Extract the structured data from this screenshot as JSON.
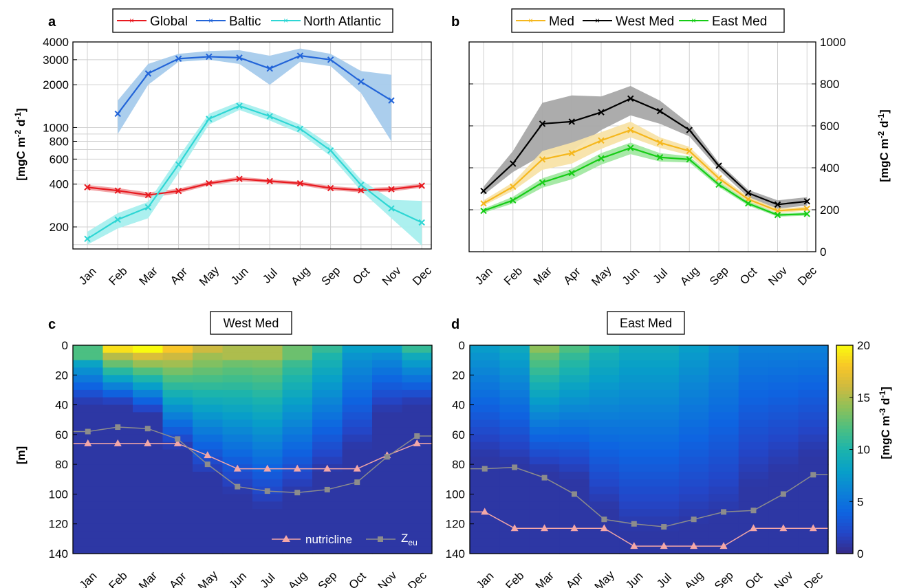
{
  "months": [
    "Jan",
    "Feb",
    "Mar",
    "Apr",
    "May",
    "Jun",
    "Jul",
    "Aug",
    "Sep",
    "Oct",
    "Nov",
    "Dec"
  ],
  "chart_data": [
    {
      "panel": "a",
      "type": "line",
      "y_scale": "log",
      "ylim": [
        140,
        4000
      ],
      "y_ticks": [
        200,
        400,
        600,
        800,
        1000,
        2000,
        3000,
        4000
      ],
      "ylabel": "[mgC m^-2 d^-1]",
      "ylabel_parts": {
        "pre": "[mgC m",
        "sup1": "-2",
        "mid": " d",
        "sup2": "-1",
        "post": "]"
      },
      "categories": [
        "Jan",
        "Feb",
        "Mar",
        "Apr",
        "May",
        "Jun",
        "Jul",
        "Aug",
        "Sep",
        "Oct",
        "Nov",
        "Dec"
      ],
      "grid": true,
      "legend_position": "top",
      "series": [
        {
          "name": "Global",
          "color": "#e8191f",
          "band_color": "#f0a1a3",
          "values": [
            380,
            360,
            335,
            358,
            405,
            435,
            420,
            405,
            375,
            362,
            368,
            390
          ],
          "lower": [
            365,
            345,
            320,
            345,
            392,
            420,
            408,
            392,
            362,
            350,
            355,
            378
          ],
          "upper": [
            395,
            375,
            350,
            372,
            418,
            450,
            432,
            418,
            388,
            375,
            382,
            402
          ]
        },
        {
          "name": "Baltic",
          "color": "#2264d8",
          "band_color": "#a6cbec",
          "values": [
            null,
            1250,
            2400,
            3050,
            3150,
            3100,
            2600,
            3200,
            3000,
            2100,
            1550,
            null
          ],
          "lower": [
            null,
            900,
            2000,
            2900,
            3000,
            2800,
            2000,
            2900,
            2700,
            1750,
            800,
            null
          ],
          "upper": [
            null,
            1550,
            2800,
            3300,
            3450,
            3500,
            3200,
            3600,
            3300,
            2500,
            2350,
            null
          ]
        },
        {
          "name": "North Atlantic",
          "color": "#2ed6d4",
          "band_color": "#a8efee",
          "values": [
            165,
            225,
            275,
            550,
            1150,
            1420,
            1200,
            980,
            690,
            395,
            270,
            215
          ],
          "lower": [
            150,
            195,
            230,
            480,
            1050,
            1330,
            1120,
            910,
            630,
            360,
            230,
            148
          ],
          "upper": [
            185,
            250,
            300,
            620,
            1250,
            1520,
            1290,
            1050,
            750,
            430,
            310,
            305
          ]
        }
      ]
    },
    {
      "panel": "b",
      "type": "line",
      "ylim": [
        0,
        1000
      ],
      "y_ticks": [
        0,
        200,
        400,
        600,
        800,
        1000
      ],
      "y_axis_side": "right",
      "ylabel": "[mgC m^-2 d^-1]",
      "ylabel_parts": {
        "pre": "[mgC m",
        "sup1": "-2",
        "mid": " d",
        "sup2": "-1",
        "post": "]"
      },
      "categories": [
        "Jan",
        "Feb",
        "Mar",
        "Apr",
        "May",
        "Jun",
        "Jul",
        "Aug",
        "Sep",
        "Oct",
        "Nov",
        "Dec"
      ],
      "grid": true,
      "legend_position": "top",
      "series": [
        {
          "name": "Med",
          "color": "#f5b71d",
          "band_color": "#f8e3a8",
          "values": [
            230,
            310,
            440,
            470,
            530,
            580,
            520,
            480,
            350,
            250,
            195,
            205
          ],
          "lower": [
            220,
            290,
            390,
            420,
            490,
            545,
            495,
            460,
            335,
            238,
            185,
            195
          ],
          "upper": [
            245,
            330,
            480,
            520,
            570,
            620,
            545,
            500,
            365,
            262,
            205,
            215
          ]
        },
        {
          "name": "West Med",
          "color": "#000000",
          "band_color": "#a8a8a8",
          "values": [
            290,
            420,
            610,
            620,
            665,
            730,
            670,
            580,
            410,
            280,
            225,
            240
          ],
          "lower": [
            270,
            380,
            460,
            480,
            580,
            650,
            610,
            550,
            390,
            260,
            205,
            220
          ],
          "upper": [
            310,
            480,
            710,
            745,
            740,
            790,
            720,
            610,
            425,
            295,
            245,
            260
          ]
        },
        {
          "name": "East Med",
          "color": "#15cc15",
          "band_color": "#a2e8a2",
          "values": [
            195,
            245,
            330,
            375,
            445,
            495,
            450,
            440,
            320,
            230,
            175,
            180
          ],
          "lower": [
            185,
            230,
            305,
            345,
            415,
            465,
            430,
            425,
            308,
            220,
            167,
            172
          ],
          "upper": [
            205,
            262,
            350,
            395,
            470,
            520,
            470,
            455,
            333,
            240,
            183,
            188
          ]
        }
      ]
    },
    {
      "panel": "c",
      "type": "heatmap",
      "title": "West Med",
      "ylabel": "[m]",
      "ylim": [
        140,
        0
      ],
      "y_ticks": [
        0,
        20,
        40,
        60,
        80,
        100,
        120,
        140
      ],
      "categories": [
        "Jan",
        "Feb",
        "Mar",
        "Apr",
        "May",
        "Jun",
        "Jul",
        "Aug",
        "Sep",
        "Oct",
        "Nov",
        "Dec"
      ],
      "profiles": [
        {
          "dcm": 8,
          "peak": 12,
          "bottom": 40
        },
        {
          "dcm": 4,
          "peak": 19,
          "bottom": 40
        },
        {
          "dcm": 4,
          "peak": 20,
          "bottom": 46
        },
        {
          "dcm": 4,
          "peak": 18,
          "bottom": 70
        },
        {
          "dcm": 4,
          "peak": 16,
          "bottom": 88
        },
        {
          "dcm": 10,
          "peak": 15,
          "bottom": 100
        },
        {
          "dcm": 10,
          "peak": 15,
          "bottom": 110
        },
        {
          "dcm": 10,
          "peak": 13,
          "bottom": 100
        },
        {
          "dcm": 6,
          "peak": 11,
          "bottom": 85
        },
        {
          "dcm": 4,
          "peak": 8,
          "bottom": 70
        },
        {
          "dcm": 4,
          "peak": 8,
          "bottom": 45
        },
        {
          "dcm": 4,
          "peak": 11,
          "bottom": 40
        }
      ],
      "lines": [
        {
          "name": "nutricline",
          "color": "#f4a7a7",
          "marker": "triangle",
          "values": [
            66,
            66,
            66,
            66,
            74,
            83,
            83,
            83,
            83,
            83,
            74,
            66
          ]
        },
        {
          "name": "Z_eu",
          "label_base": "Z",
          "label_sub": "eu",
          "color": "#8c8c8c",
          "marker": "square",
          "values": [
            58,
            55,
            56,
            63,
            80,
            95,
            98,
            99,
            97,
            92,
            75,
            61
          ]
        }
      ],
      "legend_position": "bottom-right"
    },
    {
      "panel": "d",
      "type": "heatmap",
      "title": "East Med",
      "ylim": [
        140,
        0
      ],
      "y_ticks": [
        0,
        20,
        40,
        60,
        80,
        100,
        120,
        140
      ],
      "categories": [
        "Jan",
        "Feb",
        "Mar",
        "Apr",
        "May",
        "Jun",
        "Jul",
        "Aug",
        "Sep",
        "Oct",
        "Nov",
        "Dec"
      ],
      "profiles": [
        {
          "dcm": 60,
          "peak": 8,
          "bottom": 75
        },
        {
          "dcm": 60,
          "peak": 9,
          "bottom": 80
        },
        {
          "dcm": 4,
          "peak": 14,
          "bottom": 85
        },
        {
          "dcm": 4,
          "peak": 12,
          "bottom": 90
        },
        {
          "dcm": 4,
          "peak": 10,
          "bottom": 110
        },
        {
          "dcm": 60,
          "peak": 9,
          "bottom": 125
        },
        {
          "dcm": 60,
          "peak": 9,
          "bottom": 125
        },
        {
          "dcm": 60,
          "peak": 8,
          "bottom": 120
        },
        {
          "dcm": 60,
          "peak": 7,
          "bottom": 115
        },
        {
          "dcm": 60,
          "peak": 6,
          "bottom": 95
        },
        {
          "dcm": 60,
          "peak": 6,
          "bottom": 85
        },
        {
          "dcm": 60,
          "peak": 6,
          "bottom": 75
        }
      ],
      "lines": [
        {
          "name": "nutricline",
          "color": "#f4a7a7",
          "marker": "triangle",
          "values": [
            112,
            123,
            123,
            123,
            123,
            135,
            135,
            135,
            135,
            123,
            123,
            123
          ]
        },
        {
          "name": "Z_eu",
          "color": "#8c8c8c",
          "marker": "square",
          "values": [
            83,
            82,
            89,
            100,
            117,
            120,
            122,
            117,
            112,
            111,
            100,
            87
          ]
        }
      ],
      "colorbar": {
        "range": [
          0,
          20
        ],
        "ticks": [
          0,
          5,
          10,
          15,
          20
        ],
        "label": "[mgC m^-3 d^-1]",
        "label_parts": {
          "pre": "[mgC m",
          "sup1": "-3",
          "mid": " d",
          "sup2": "-1",
          "post": "]"
        }
      }
    }
  ],
  "panel_labels": [
    "a",
    "b",
    "c",
    "d"
  ]
}
